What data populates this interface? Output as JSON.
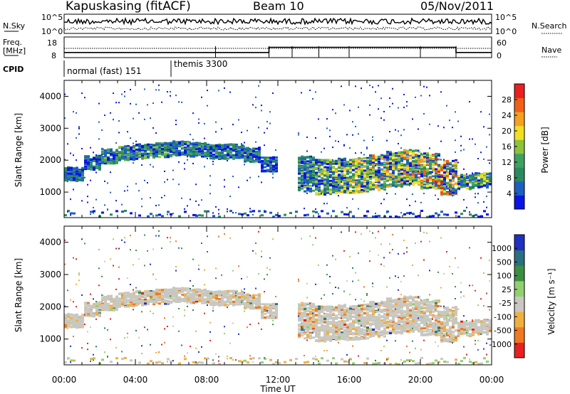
{
  "header": {
    "station": "Kapuskasing (fitACF)",
    "beam": "Beam 10",
    "date": "05/Nov/2011"
  },
  "top_panels": {
    "nsky_label": "N.Sky",
    "nsky_ticks": [
      "10^5",
      "10^0"
    ],
    "nsearch_label": "N.Search",
    "nsearch_ticks": [
      "10^5",
      "10^0"
    ],
    "freq_label": "Freq.",
    "freq_unit": "[MHz]",
    "freq_ticks": [
      "18",
      "8"
    ],
    "nave_label": "Nave",
    "nave_ticks": [
      "60",
      "0"
    ],
    "cpid_label": "CPID",
    "cpid_segments": [
      "normal (fast) 151",
      "themis 3300"
    ]
  },
  "power_panel": {
    "ylabel": "Slant Range [km]",
    "yticks": [
      "4000",
      "3000",
      "2000",
      "1000"
    ],
    "colorbar_label": "Power [dB]",
    "colorbar_ticks": [
      "28",
      "24",
      "20",
      "16",
      "12",
      "8",
      "4"
    ],
    "colors": [
      "#0a14e6",
      "#1c5fc0",
      "#2a8a60",
      "#3fa060",
      "#8ec23a",
      "#f0e020",
      "#f4a020",
      "#f06018",
      "#e82020"
    ]
  },
  "velocity_panel": {
    "ylabel": "Slant Range [km]",
    "yticks": [
      "4000",
      "3000",
      "2000",
      "1000"
    ],
    "colorbar_label": "Velocity [m s⁻¹]",
    "colorbar_ticks": [
      "1000",
      "500",
      "100",
      "25",
      "-25",
      "-100",
      "-500",
      "-1000"
    ],
    "colors": [
      "#2030c0",
      "#2a7080",
      "#3a9040",
      "#90d070",
      "#c8c8c0",
      "#f0b040",
      "#f07820",
      "#e82020"
    ]
  },
  "time_axis": {
    "label": "Time UT",
    "ticks": [
      "00:00",
      "04:00",
      "08:00",
      "12:00",
      "16:00",
      "20:00",
      "00:00"
    ]
  },
  "chart_data": {
    "type": "heatmap",
    "x_unit": "hours UT",
    "xlim": [
      0,
      24
    ],
    "ylim": [
      200,
      4500
    ],
    "range_bands_hours": [
      0,
      1,
      2,
      3,
      4,
      5,
      6,
      7,
      8,
      9,
      10,
      11,
      12,
      13,
      14,
      15,
      16,
      17,
      18,
      19,
      20,
      21,
      22,
      23
    ],
    "scatter_band_center_km": [
      1600,
      1950,
      2150,
      2250,
      2300,
      2350,
      2400,
      2350,
      2300,
      2300,
      2200,
      1900,
      null,
      1600,
      1500,
      1550,
      1550,
      1650,
      1750,
      1800,
      1700,
      1500,
      1350,
      1400
    ],
    "power_peak_db": [
      10,
      12,
      14,
      15,
      14,
      14,
      13,
      12,
      12,
      12,
      12,
      10,
      0,
      14,
      18,
      20,
      22,
      22,
      22,
      24,
      26,
      28,
      18,
      18
    ],
    "freq_mhz": {
      "times": [
        0,
        11.5,
        11.5,
        22,
        22,
        24
      ],
      "values": [
        10.5,
        10.5,
        13,
        13,
        10.5,
        10.5
      ]
    },
    "cpid": [
      {
        "start": 0,
        "end": 6,
        "label": "normal (fast) 151"
      },
      {
        "start": 6,
        "end": 24,
        "label": "themis 3300"
      }
    ]
  }
}
